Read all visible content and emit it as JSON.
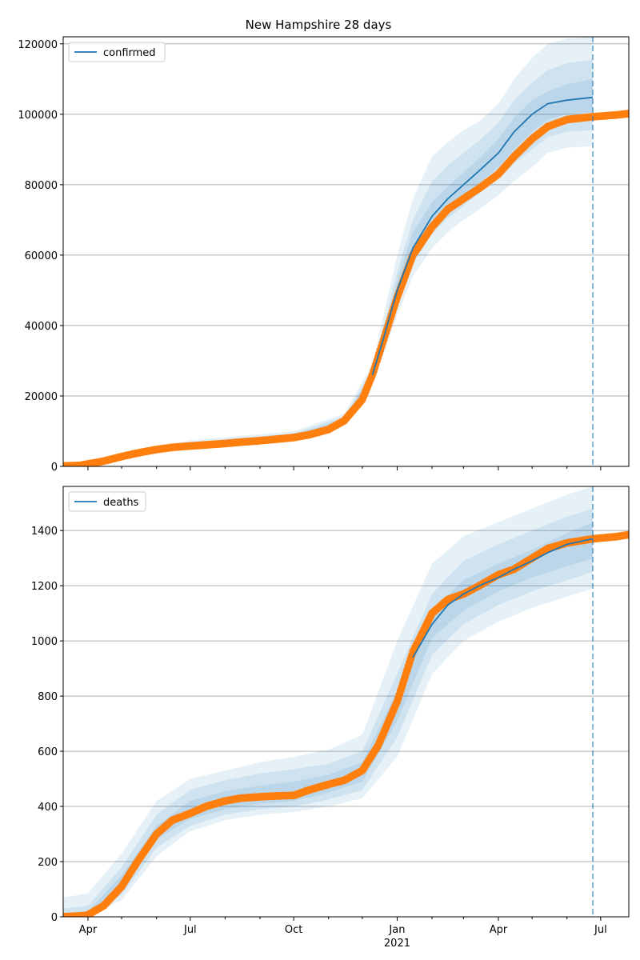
{
  "chart_data": [
    {
      "type": "line",
      "title": "New Hampshire 28 days",
      "legend": {
        "label": "confirmed",
        "placement": "top-left"
      },
      "grid": "horizontal",
      "ylim": [
        0,
        122000
      ],
      "yticks": [
        0,
        20000,
        40000,
        60000,
        80000,
        100000,
        120000
      ],
      "forecast_start": "2021-06-24",
      "colors": {
        "model": "#1f77b4",
        "observed": "#ff7f0e",
        "band": "#1f77b4"
      },
      "observed": {
        "x": [
          "2020-03-10",
          "2020-03-25",
          "2020-04-15",
          "2020-05-01",
          "2020-05-15",
          "2020-06-01",
          "2020-06-15",
          "2020-07-01",
          "2020-07-15",
          "2020-08-01",
          "2020-08-15",
          "2020-09-01",
          "2020-09-15",
          "2020-10-01",
          "2020-10-15",
          "2020-11-01",
          "2020-11-15",
          "2020-12-01",
          "2020-12-10",
          "2020-12-20",
          "2021-01-01",
          "2021-01-15",
          "2021-02-01",
          "2021-02-15",
          "2021-03-01",
          "2021-03-15",
          "2021-04-01",
          "2021-04-15",
          "2021-05-01",
          "2021-05-15",
          "2021-06-01",
          "2021-06-24",
          "2021-07-15",
          "2021-07-26"
        ],
        "y": [
          100,
          300,
          1500,
          2800,
          3800,
          4800,
          5400,
          5800,
          6100,
          6500,
          6900,
          7300,
          7700,
          8200,
          9000,
          10500,
          13000,
          19000,
          26000,
          36000,
          48000,
          60000,
          68000,
          73000,
          76000,
          79000,
          83000,
          88000,
          93000,
          96500,
          98500,
          99300,
          99800,
          100200
        ]
      },
      "model": {
        "x": [
          "2020-12-10",
          "2020-12-20",
          "2021-01-01",
          "2021-01-15",
          "2021-02-01",
          "2021-02-15",
          "2021-03-01",
          "2021-03-15",
          "2021-04-01",
          "2021-04-15",
          "2021-05-01",
          "2021-05-15",
          "2021-06-01",
          "2021-06-24"
        ],
        "y": [
          26000,
          36500,
          50000,
          62000,
          71000,
          76000,
          80000,
          84000,
          89000,
          95000,
          100000,
          103000,
          104000,
          104800
        ]
      },
      "bands": [
        {
          "x": [
            "2020-03-10",
            "2020-07-01",
            "2020-10-01",
            "2020-11-15",
            "2020-12-10",
            "2020-12-20",
            "2021-01-01",
            "2021-01-15",
            "2021-02-01",
            "2021-02-15",
            "2021-03-01",
            "2021-03-15",
            "2021-04-01",
            "2021-04-15",
            "2021-05-01",
            "2021-05-15",
            "2021-06-01",
            "2021-06-24"
          ],
          "lower": [
            0,
            5200,
            7600,
            11500,
            24000,
            32000,
            43000,
            54000,
            62000,
            66500,
            70000,
            73000,
            77000,
            81000,
            85000,
            89000,
            90500,
            91000
          ],
          "upper": [
            0,
            7400,
            10000,
            15000,
            29000,
            43000,
            60000,
            76000,
            88000,
            92000,
            95500,
            98000,
            103000,
            110000,
            116000,
            120000,
            121500,
            122000
          ]
        },
        {
          "x": [
            "2020-03-10",
            "2020-07-01",
            "2020-10-01",
            "2020-11-15",
            "2020-12-10",
            "2020-12-20",
            "2021-01-01",
            "2021-01-15",
            "2021-02-01",
            "2021-02-15",
            "2021-03-01",
            "2021-03-15",
            "2021-04-01",
            "2021-04-15",
            "2021-05-01",
            "2021-05-15",
            "2021-06-01",
            "2021-06-24"
          ],
          "lower": [
            0,
            5500,
            8000,
            12300,
            25000,
            34000,
            46000,
            57500,
            66000,
            70500,
            74000,
            77500,
            81500,
            86000,
            90000,
            93500,
            95000,
            95500
          ],
          "upper": [
            0,
            6900,
            9400,
            14200,
            27500,
            40000,
            55000,
            70000,
            81000,
            85500,
            89000,
            92500,
            97500,
            104000,
            109000,
            112500,
            114500,
            115500
          ]
        },
        {
          "x": [
            "2020-03-10",
            "2020-07-01",
            "2020-10-01",
            "2020-11-15",
            "2020-12-10",
            "2020-12-20",
            "2021-01-01",
            "2021-01-15",
            "2021-02-01",
            "2021-02-15",
            "2021-03-01",
            "2021-03-15",
            "2021-04-01",
            "2021-04-15",
            "2021-05-01",
            "2021-05-15",
            "2021-06-01",
            "2021-06-24"
          ],
          "lower": [
            0,
            5750,
            8400,
            12800,
            25500,
            35200,
            48000,
            60000,
            68500,
            73500,
            77000,
            80500,
            85000,
            90000,
            95000,
            98500,
            100000,
            100500
          ],
          "upper": [
            0,
            6450,
            8900,
            13600,
            26600,
            38000,
            52500,
            66500,
            75000,
            79500,
            83500,
            87500,
            93000,
            99000,
            104000,
            106500,
            108500,
            110000
          ]
        }
      ]
    },
    {
      "type": "line",
      "title": "",
      "legend": {
        "label": "deaths",
        "placement": "top-left"
      },
      "grid": "horizontal",
      "ylim": [
        0,
        1560
      ],
      "yticks": [
        0,
        200,
        400,
        600,
        800,
        1000,
        1200,
        1400
      ],
      "forecast_start": "2021-06-24",
      "colors": {
        "model": "#1f77b4",
        "observed": "#ff7f0e",
        "band": "#1f77b4"
      },
      "observed": {
        "x": [
          "2020-03-10",
          "2020-03-31",
          "2020-04-15",
          "2020-05-01",
          "2020-05-15",
          "2020-06-01",
          "2020-06-15",
          "2020-07-01",
          "2020-07-15",
          "2020-08-01",
          "2020-08-15",
          "2020-09-01",
          "2020-09-15",
          "2020-10-01",
          "2020-10-15",
          "2020-11-01",
          "2020-11-15",
          "2020-12-01",
          "2020-12-15",
          "2021-01-01",
          "2021-01-15",
          "2021-02-01",
          "2021-02-15",
          "2021-03-01",
          "2021-03-15",
          "2021-04-01",
          "2021-04-15",
          "2021-05-01",
          "2021-05-15",
          "2021-06-01",
          "2021-06-24",
          "2021-07-15",
          "2021-07-26"
        ],
        "y": [
          0,
          5,
          40,
          110,
          200,
          300,
          350,
          375,
          400,
          420,
          430,
          435,
          438,
          440,
          460,
          480,
          495,
          530,
          620,
          780,
          960,
          1100,
          1150,
          1170,
          1200,
          1240,
          1260,
          1300,
          1335,
          1355,
          1370,
          1378,
          1385
        ]
      },
      "model": {
        "x": [
          "2021-01-15",
          "2021-02-01",
          "2021-02-15",
          "2021-03-01",
          "2021-03-15",
          "2021-04-01",
          "2021-04-15",
          "2021-05-01",
          "2021-05-15",
          "2021-06-01",
          "2021-06-24"
        ],
        "y": [
          940,
          1060,
          1130,
          1170,
          1200,
          1230,
          1260,
          1290,
          1320,
          1350,
          1370
        ]
      },
      "bands": [
        {
          "x": [
            "2020-03-10",
            "2020-04-01",
            "2020-05-01",
            "2020-06-01",
            "2020-07-01",
            "2020-08-01",
            "2020-09-01",
            "2020-10-01",
            "2020-11-01",
            "2020-12-01",
            "2021-01-01",
            "2021-02-01",
            "2021-03-01",
            "2021-04-01",
            "2021-05-01",
            "2021-06-01",
            "2021-06-24"
          ],
          "lower": [
            0,
            0,
            60,
            220,
            310,
            350,
            370,
            380,
            400,
            430,
            580,
            880,
            1000,
            1070,
            1120,
            1160,
            1190
          ],
          "upper": [
            70,
            85,
            230,
            420,
            500,
            530,
            560,
            580,
            605,
            660,
            1000,
            1280,
            1380,
            1430,
            1480,
            1530,
            1560
          ]
        },
        {
          "x": [
            "2020-03-10",
            "2020-04-01",
            "2020-05-01",
            "2020-06-01",
            "2020-07-01",
            "2020-08-01",
            "2020-09-01",
            "2020-10-01",
            "2020-11-01",
            "2020-12-01",
            "2021-01-01",
            "2021-02-01",
            "2021-03-01",
            "2021-04-01",
            "2021-05-01",
            "2021-06-01",
            "2021-06-24"
          ],
          "lower": [
            0,
            0,
            80,
            250,
            330,
            370,
            390,
            400,
            425,
            460,
            650,
            950,
            1060,
            1130,
            1180,
            1220,
            1250
          ],
          "upper": [
            30,
            40,
            180,
            370,
            460,
            495,
            520,
            535,
            555,
            600,
            880,
            1170,
            1290,
            1350,
            1400,
            1450,
            1480
          ]
        },
        {
          "x": [
            "2020-03-10",
            "2020-04-01",
            "2020-05-01",
            "2020-06-01",
            "2020-07-01",
            "2020-08-01",
            "2020-09-01",
            "2020-10-01",
            "2020-11-01",
            "2020-12-01",
            "2021-01-01",
            "2021-02-01",
            "2021-03-01",
            "2021-04-01",
            "2021-05-01",
            "2021-06-01",
            "2021-06-24"
          ],
          "lower": [
            0,
            0,
            100,
            280,
            355,
            390,
            410,
            420,
            450,
            490,
            710,
            1010,
            1110,
            1180,
            1230,
            1270,
            1300
          ],
          "upper": [
            10,
            20,
            150,
            330,
            420,
            455,
            475,
            490,
            515,
            560,
            820,
            1110,
            1220,
            1280,
            1330,
            1390,
            1430
          ]
        }
      ]
    }
  ],
  "x_axis": {
    "range": [
      "2020-03-10",
      "2021-07-26"
    ],
    "major_ticks": [
      {
        "date": "2020-04-01",
        "label": "Apr"
      },
      {
        "date": "2020-07-01",
        "label": "Jul"
      },
      {
        "date": "2020-10-01",
        "label": "Oct"
      },
      {
        "date": "2021-01-01",
        "label": "Jan"
      },
      {
        "date": "2021-04-01",
        "label": "Apr"
      },
      {
        "date": "2021-07-01",
        "label": "Jul"
      }
    ],
    "minor_ticks": [
      "2020-05-01",
      "2020-06-01",
      "2020-08-01",
      "2020-09-01",
      "2020-11-01",
      "2020-12-01",
      "2021-02-01",
      "2021-03-01",
      "2021-05-01",
      "2021-06-01"
    ],
    "year_label": "2021"
  }
}
